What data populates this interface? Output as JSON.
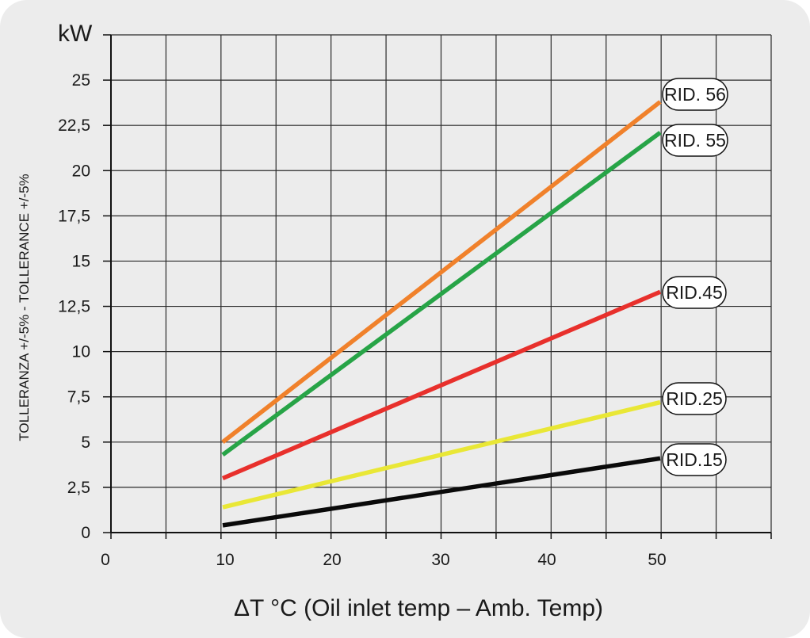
{
  "chart_data": {
    "type": "line",
    "ylabel_unit": "kW",
    "ylabel": "TOLLERANZA +/-5% - TOLLERANCE +/-5%",
    "xlabel": "ΔT °C (Oil inlet temp – Amb. Temp)",
    "xlim": [
      0,
      60
    ],
    "ylim": [
      0,
      27.5
    ],
    "x_ticks": [
      "0",
      "10",
      "20",
      "30",
      "40",
      "50"
    ],
    "y_ticks": [
      "0",
      "2,5",
      "5",
      "7,5",
      "10",
      "12,5",
      "15",
      "17,5",
      "20",
      "22,5",
      "25"
    ],
    "grid": true,
    "series": [
      {
        "name": "RID. 56",
        "color": "#f0812b",
        "x": [
          10,
          50
        ],
        "y": [
          5.0,
          23.8
        ]
      },
      {
        "name": "RID. 55",
        "color": "#27a447",
        "x": [
          10,
          50
        ],
        "y": [
          4.3,
          22.1
        ]
      },
      {
        "name": "RID.45",
        "color": "#e8302c",
        "x": [
          10,
          50
        ],
        "y": [
          3.0,
          13.3
        ]
      },
      {
        "name": "RID.25",
        "color": "#e9e736",
        "x": [
          10,
          50
        ],
        "y": [
          1.4,
          7.2
        ]
      },
      {
        "name": "RID.15",
        "color": "#0a0a0a",
        "x": [
          10,
          50
        ],
        "y": [
          0.4,
          4.1
        ]
      }
    ]
  }
}
